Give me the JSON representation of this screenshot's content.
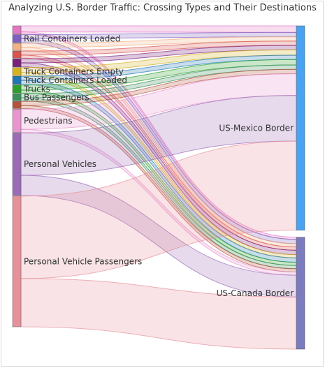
{
  "chart_data": {
    "type": "sankey",
    "title": "Analyzing U.S. Border Traffic: Crossing Types and Their Destinations",
    "sources": [
      {
        "name": "",
        "color": "#e377c2"
      },
      {
        "name": "Rail Containers Loaded",
        "color": "#7f5fbf"
      },
      {
        "name": "",
        "color": "#f4b183"
      },
      {
        "name": "",
        "color": "#d9534f"
      },
      {
        "name": "",
        "color": "#7a1f7a"
      },
      {
        "name": "Truck Containers Empty",
        "color": "#d4b11f"
      },
      {
        "name": "Truck Containers Loaded",
        "color": "#1f77b4"
      },
      {
        "name": "Trucks",
        "color": "#2ca02c"
      },
      {
        "name": "Bus Passengers",
        "color": "#3a8f5a"
      },
      {
        "name": "",
        "color": "#b5533c"
      },
      {
        "name": "Pedestrians",
        "color": "#e895cf"
      },
      {
        "name": "Personal Vehicles",
        "color": "#9b6bb5"
      },
      {
        "name": "Personal Vehicle Passengers",
        "color": "#e6919a"
      }
    ],
    "targets": [
      {
        "name": "US-Mexico Border",
        "color": "#4aa3f0"
      },
      {
        "name": "US-Canada Border",
        "color": "#7b7bbf"
      }
    ],
    "links": [
      {
        "source": 0,
        "target": 0,
        "value": 3
      },
      {
        "source": 0,
        "target": 1,
        "value": 1
      },
      {
        "source": 1,
        "target": 0,
        "value": 2
      },
      {
        "source": 1,
        "target": 1,
        "value": 2
      },
      {
        "source": 2,
        "target": 0,
        "value": 2
      },
      {
        "source": 2,
        "target": 1,
        "value": 1.5
      },
      {
        "source": 3,
        "target": 0,
        "value": 2
      },
      {
        "source": 3,
        "target": 1,
        "value": 1.5
      },
      {
        "source": 4,
        "target": 0,
        "value": 2
      },
      {
        "source": 4,
        "target": 1,
        "value": 2
      },
      {
        "source": 5,
        "target": 0,
        "value": 2.5
      },
      {
        "source": 5,
        "target": 1,
        "value": 1.5
      },
      {
        "source": 6,
        "target": 0,
        "value": 2
      },
      {
        "source": 6,
        "target": 1,
        "value": 2
      },
      {
        "source": 7,
        "target": 0,
        "value": 2.5
      },
      {
        "source": 7,
        "target": 1,
        "value": 1.5
      },
      {
        "source": 8,
        "target": 0,
        "value": 2
      },
      {
        "source": 8,
        "target": 1,
        "value": 1.5
      },
      {
        "source": 9,
        "target": 0,
        "value": 2
      },
      {
        "source": 9,
        "target": 1,
        "value": 1.5
      },
      {
        "source": 10,
        "target": 0,
        "value": 10
      },
      {
        "source": 10,
        "target": 1,
        "value": 1.5
      },
      {
        "source": 11,
        "target": 0,
        "value": 21
      },
      {
        "source": 11,
        "target": 1,
        "value": 10
      },
      {
        "source": 12,
        "target": 0,
        "value": 41
      },
      {
        "source": 12,
        "target": 1,
        "value": 24
      }
    ]
  }
}
